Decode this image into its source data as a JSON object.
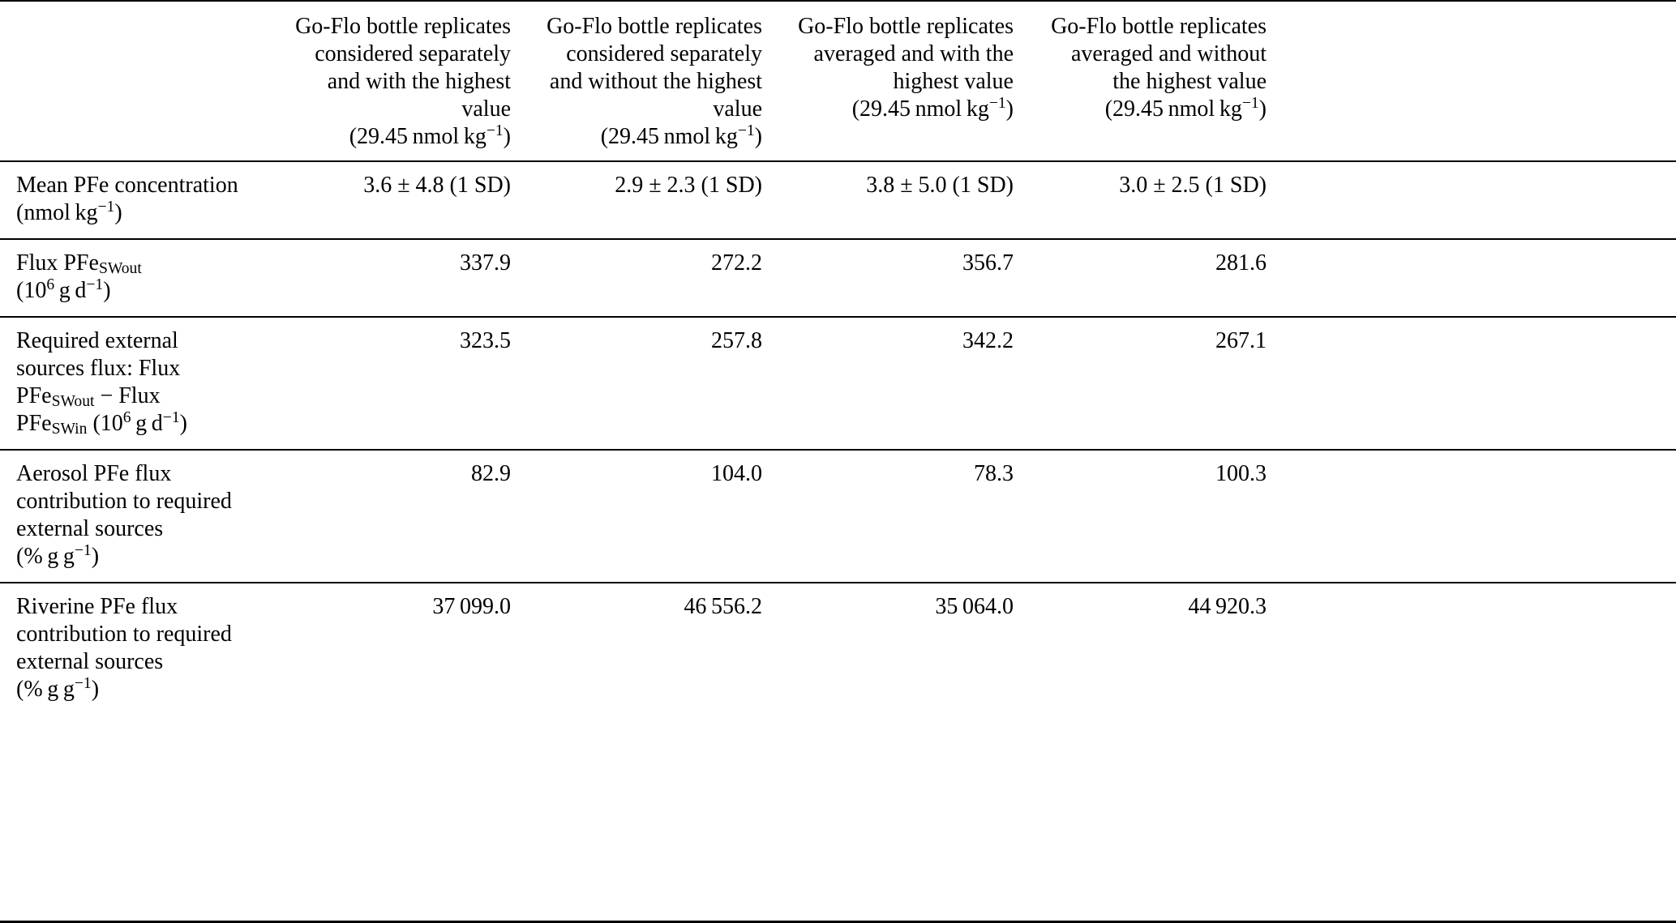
{
  "page": {
    "background_color": "#ffffff",
    "text_color": "#000000",
    "rule_color": "#000000"
  },
  "table": {
    "corner_label": "",
    "columns": [
      {
        "header_html": "Go-Flo bottle replicates<br>considered separately<br>and with the highest<br>value<br>(29.45 nmol kg<sup>−1</sup>)"
      },
      {
        "header_html": "Go-Flo bottle replicates<br>considered separately<br>and without the highest<br>value<br>(29.45 nmol kg<sup>−1</sup>)"
      },
      {
        "header_html": "Go-Flo bottle replicates<br>averaged and with the<br>highest value<br>(29.45 nmol kg<sup>−1</sup>)"
      },
      {
        "header_html": "Go-Flo bottle replicates<br>averaged and without<br>the highest value<br>(29.45 nmol kg<sup>−1</sup>)"
      }
    ],
    "rows": [
      {
        "label_html": "Mean PFe concentration<br>(nmol kg<sup>−1</sup>)",
        "values": [
          "3.6 ± 4.8 (1 SD)",
          "2.9 ± 2.3 (1 SD)",
          "3.8 ± 5.0 (1 SD)",
          "3.0 ± 2.5 (1 SD)"
        ]
      },
      {
        "label_html": "Flux PFe<sub>SWout</sub><br>(10<sup>6</sup> g d<sup>−1</sup>)",
        "values": [
          "337.9",
          "272.2",
          "356.7",
          "281.6"
        ]
      },
      {
        "label_html": "Required external<br>sources flux: Flux<br>PFe<sub>SWout</sub> − Flux<br>PFe<sub>SWin</sub> (10<sup>6</sup> g d<sup>−1</sup>)",
        "values": [
          "323.5",
          "257.8",
          "342.2",
          "267.1"
        ]
      },
      {
        "label_html": "Aerosol PFe flux<br>contribution to required<br>external sources<br>(% g g<sup>−1</sup>)",
        "values": [
          "82.9",
          "104.0",
          "78.3",
          "100.3"
        ]
      },
      {
        "label_html": "Riverine PFe flux<br>contribution to required<br>external sources<br>(% g g<sup>−1</sup>)",
        "values": [
          "37 099.0",
          "46 556.2",
          "35 064.0",
          "44 920.3"
        ]
      }
    ]
  }
}
